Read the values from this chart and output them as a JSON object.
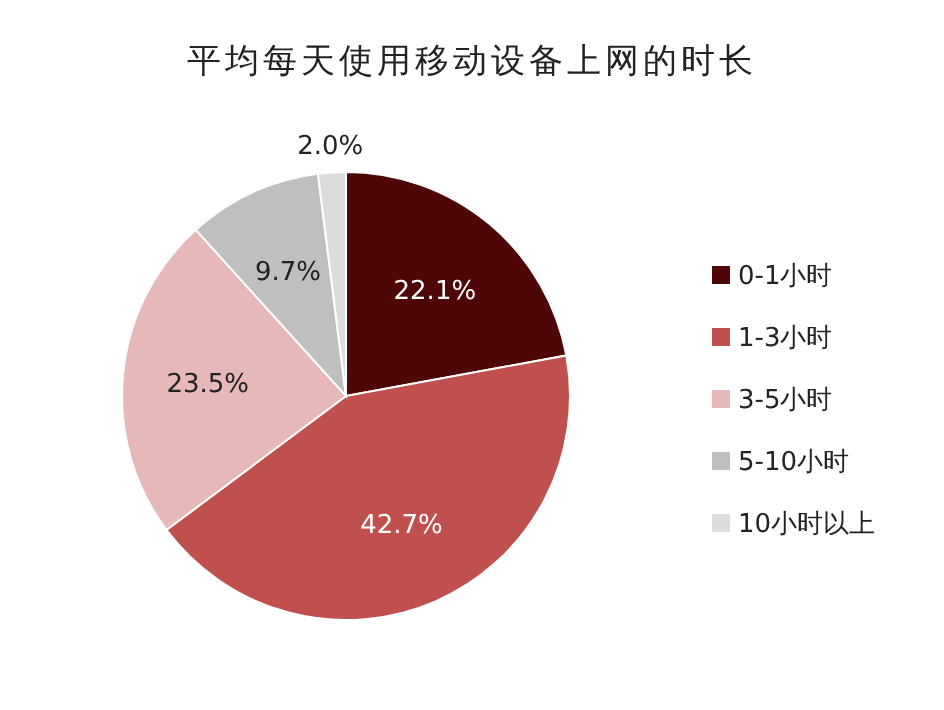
{
  "chart_data": {
    "type": "pie",
    "title": "平均每天使用移动设备上网的时长",
    "categories": [
      "0-1小时",
      "1-3小时",
      "3-5小时",
      "5-10小时",
      "10小时以上"
    ],
    "values": [
      22.1,
      42.7,
      23.5,
      9.7,
      2.0
    ],
    "colors": [
      "#4f0606",
      "#c0504d",
      "#e6b9b8",
      "#bfbfbf",
      "#dcdcdc"
    ],
    "value_labels": [
      "22.1%",
      "42.7%",
      "23.5%",
      "9.7%",
      "2.0%"
    ],
    "legend": "right"
  }
}
